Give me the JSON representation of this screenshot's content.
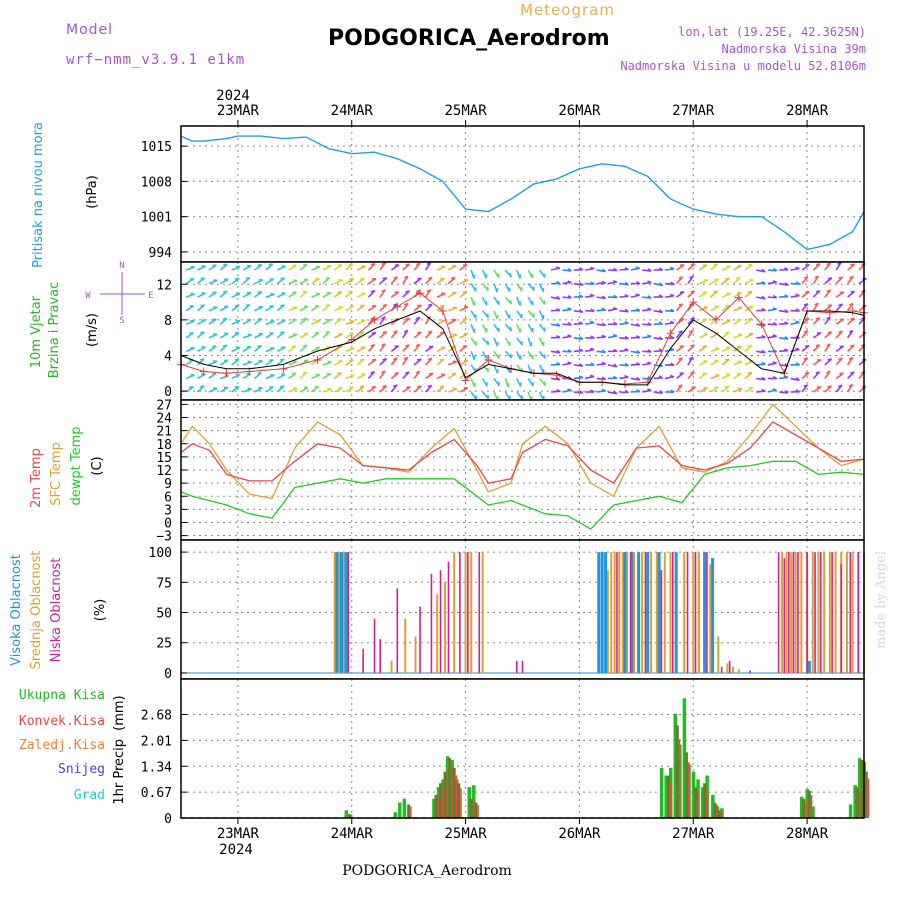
{
  "header": {
    "model_label": "Model",
    "model_name": "wrf−nmm_v3.9.1  e1km",
    "product": "Meteogram",
    "station": "PODGORICA_Aerodrom",
    "lonlat": "lon,lat (19.25E, 42.3625N)",
    "elevation": "Nadmorska Visina 39m",
    "model_elevation": "Nadmorska Visina u modelu 52.8106m",
    "footer_station": "PODGORICA_Aerodrom",
    "credit": "made by Angel"
  },
  "time_axis": {
    "year": "2024",
    "ticks": [
      "23MAR",
      "24MAR",
      "25MAR",
      "26MAR",
      "27MAR",
      "28MAR"
    ],
    "x_range_days": [
      22.5,
      28.5
    ]
  },
  "colors": {
    "pressure": "#1ea0e8",
    "wind_speed": "#000000",
    "wind_gust": "#e83c3c",
    "temp_2m": "#e84848",
    "temp_sfc": "#e0a030",
    "dewpoint": "#22cc22",
    "cloud_high": "#1e96e0",
    "cloud_mid": "#e0a030",
    "cloud_low": "#cc2299",
    "precip_total": "#22bb22",
    "precip_conv": "#e84848",
    "precip_frozen": "#f08030",
    "snow": "#4444dd",
    "graupel": "#22cccc",
    "model_text": "#aa55cc",
    "product_text": "#e8b050"
  },
  "chart_data": [
    {
      "type": "line",
      "name": "pressure",
      "ylabel": "Pritisak na nivou mora",
      "unit": "(hPa)",
      "ylim": [
        992,
        1019
      ],
      "yticks": [
        994,
        1001,
        1008,
        1015
      ],
      "series": [
        {
          "x": [
            22.5,
            22.6,
            22.7,
            22.9,
            23.0,
            23.2,
            23.4,
            23.6,
            23.8,
            24.0,
            24.2,
            24.4,
            24.6,
            24.8,
            25.0,
            25.2,
            25.4,
            25.6,
            25.8,
            26.0,
            26.2,
            26.4,
            26.6,
            26.8,
            27.0,
            27.2,
            27.4,
            27.6,
            27.8,
            28.0,
            28.2,
            28.4,
            28.5
          ],
          "values": [
            1017,
            1016,
            1016,
            1016.5,
            1017,
            1017,
            1016.5,
            1016.8,
            1014.5,
            1013.5,
            1013.8,
            1012.5,
            1010.5,
            1008,
            1002.5,
            1002,
            1004.5,
            1007.5,
            1008.5,
            1010.5,
            1011.5,
            1011,
            1009,
            1004.5,
            1002.5,
            1001.5,
            1001,
            1001,
            998,
            994.5,
            995.5,
            998,
            1002
          ]
        }
      ]
    },
    {
      "type": "line",
      "name": "wind",
      "ylabel": "10m Vjetar Brzina i Pravac",
      "unit": "(m/s)",
      "compass": [
        "N",
        "S",
        "E",
        "W"
      ],
      "ylim": [
        -1,
        14.5
      ],
      "yticks": [
        0,
        4,
        8,
        12
      ],
      "series": [
        {
          "name": "speed",
          "x": [
            22.5,
            22.7,
            22.9,
            23.1,
            23.4,
            23.7,
            24.0,
            24.2,
            24.4,
            24.6,
            24.8,
            25.0,
            25.2,
            25.4,
            25.6,
            25.8,
            26.0,
            26.2,
            26.4,
            26.6,
            26.8,
            27.0,
            27.2,
            27.4,
            27.6,
            27.8,
            28.0,
            28.2,
            28.4,
            28.5
          ],
          "values": [
            4,
            3,
            2.5,
            2.5,
            3,
            4.5,
            5.5,
            7,
            8,
            9,
            7,
            1.5,
            3,
            2.5,
            2,
            2,
            1,
            1,
            0.7,
            0.7,
            4.8,
            8,
            6.5,
            4.5,
            2.5,
            2,
            9,
            9,
            8.8,
            8.5
          ]
        },
        {
          "name": "gust",
          "x": [
            22.5,
            22.7,
            22.9,
            23.1,
            23.4,
            23.7,
            24.0,
            24.2,
            24.4,
            24.6,
            24.8,
            25.0,
            25.2,
            25.4,
            25.6,
            25.8,
            26.0,
            26.2,
            26.4,
            26.6,
            26.8,
            27.0,
            27.2,
            27.4,
            27.6,
            27.8,
            28.0,
            28.2,
            28.4,
            28.5
          ],
          "values": [
            3,
            2.2,
            2,
            2.2,
            2.5,
            3.5,
            5.8,
            8,
            9.5,
            11,
            9,
            1.2,
            3.5,
            2.5,
            2,
            1.8,
            1,
            1,
            0.8,
            1,
            6.5,
            10,
            8,
            10.5,
            7.5,
            2,
            9,
            8.8,
            9,
            8.8
          ]
        }
      ]
    },
    {
      "type": "line",
      "name": "temperature",
      "ylabel": "2m Temp / SFC Temp / dewpt Temp",
      "unit": "(C)",
      "ylim": [
        -4,
        28
      ],
      "yticks": [
        -3,
        0,
        3,
        6,
        9,
        12,
        15,
        18,
        21,
        24,
        27
      ],
      "series": [
        {
          "name": "2m Temp",
          "x": [
            22.5,
            22.6,
            22.75,
            22.9,
            23.1,
            23.3,
            23.5,
            23.7,
            23.9,
            24.1,
            24.3,
            24.5,
            24.7,
            24.9,
            25.1,
            25.2,
            25.4,
            25.5,
            25.7,
            25.9,
            26.1,
            26.3,
            26.5,
            26.7,
            26.9,
            27.1,
            27.3,
            27.5,
            27.7,
            27.9,
            28.1,
            28.3,
            28.5
          ],
          "values": [
            16,
            18,
            16.5,
            11,
            9.5,
            9.5,
            14,
            18,
            17,
            13,
            12.5,
            12,
            16,
            19,
            13,
            9,
            10,
            16,
            19,
            17.5,
            12,
            9,
            17,
            17.5,
            13,
            12,
            13.5,
            17,
            23,
            20,
            17,
            14,
            14.5
          ]
        },
        {
          "name": "SFC Temp",
          "x": [
            22.5,
            22.6,
            22.75,
            22.9,
            23.1,
            23.3,
            23.5,
            23.7,
            23.9,
            24.1,
            24.3,
            24.5,
            24.7,
            24.9,
            25.1,
            25.2,
            25.4,
            25.5,
            25.7,
            25.9,
            26.1,
            26.3,
            26.5,
            26.7,
            26.9,
            27.1,
            27.3,
            27.5,
            27.7,
            27.9,
            28.1,
            28.3,
            28.5
          ],
          "values": [
            18,
            22,
            18,
            12,
            6.5,
            5.5,
            17,
            23,
            20,
            13,
            12.5,
            11.5,
            17,
            21.5,
            12,
            7,
            9,
            18,
            22,
            18,
            9,
            6,
            17,
            22,
            12.5,
            11.5,
            14,
            20,
            27,
            22,
            17,
            13,
            14.5
          ]
        },
        {
          "name": "dewpt Temp",
          "x": [
            22.5,
            22.6,
            22.75,
            22.9,
            23.1,
            23.3,
            23.5,
            23.7,
            23.9,
            24.1,
            24.3,
            24.5,
            24.7,
            24.9,
            25.1,
            25.2,
            25.4,
            25.5,
            25.7,
            25.9,
            26.1,
            26.3,
            26.5,
            26.7,
            26.9,
            27.1,
            27.3,
            27.5,
            27.7,
            27.9,
            28.1,
            28.3,
            28.5
          ],
          "values": [
            7,
            6,
            5,
            4,
            2,
            1,
            8,
            9,
            10,
            9,
            10,
            10,
            10,
            10,
            6,
            4,
            5,
            4,
            2,
            1.5,
            -1.5,
            4,
            5,
            6,
            4.5,
            11,
            12.5,
            13,
            14,
            14,
            11,
            11.5,
            11
          ]
        }
      ]
    },
    {
      "type": "bar",
      "name": "cloud cover",
      "ylabel": "Visoka Oblacnost / Srednja Oblacnost / Niska Oblacnost",
      "unit": "(%)",
      "ylim": [
        -5,
        110
      ],
      "yticks": [
        0,
        25,
        50,
        75,
        100
      ],
      "series": [
        {
          "name": "Visoka Oblacnost",
          "x": [
            23.87,
            23.91,
            23.95,
            26.17,
            26.2,
            26.23,
            26.4,
            26.46,
            26.52,
            26.6,
            26.7,
            26.85,
            27.1,
            27.17,
            28.02
          ],
          "values": [
            100,
            100,
            100,
            100,
            100,
            100,
            100,
            100,
            100,
            100,
            100,
            100,
            100,
            95,
            10
          ]
        },
        {
          "name": "Srednja Oblacnost",
          "x": [
            23.85,
            23.89,
            23.93,
            24.35,
            24.47,
            24.56,
            24.75,
            24.82,
            24.9,
            25.0,
            25.05,
            25.15,
            26.25,
            26.28,
            26.31,
            26.35,
            26.38,
            26.42,
            26.48,
            26.55,
            26.63,
            26.68,
            26.75,
            26.8,
            26.92,
            27.0,
            27.05,
            27.15,
            27.22,
            27.3,
            27.35,
            27.4,
            27.78,
            27.82,
            27.86,
            27.9,
            27.95,
            28.0,
            28.05,
            28.1,
            28.15,
            28.2,
            28.25,
            28.3,
            28.35,
            28.4,
            28.45,
            28.5
          ],
          "values": [
            100,
            100,
            100,
            10,
            45,
            30,
            65,
            75,
            100,
            100,
            100,
            100,
            85,
            100,
            100,
            100,
            100,
            100,
            100,
            100,
            100,
            100,
            100,
            100,
            100,
            100,
            100,
            90,
            30,
            8,
            5,
            3,
            100,
            100,
            100,
            100,
            100,
            100,
            100,
            100,
            100,
            100,
            100,
            100,
            100,
            100,
            100,
            100
          ]
        },
        {
          "name": "Niska Oblacnost",
          "x": [
            23.97,
            24.1,
            24.2,
            24.25,
            24.4,
            24.6,
            24.7,
            24.78,
            24.85,
            24.95,
            25.02,
            25.12,
            25.45,
            25.5,
            26.33,
            26.45,
            26.58,
            26.72,
            26.82,
            26.95,
            27.02,
            27.12,
            27.25,
            27.32,
            27.5,
            27.75,
            27.8,
            27.84,
            27.88,
            27.92,
            28.0,
            28.07,
            28.12,
            28.22,
            28.3,
            28.38,
            28.45
          ],
          "values": [
            100,
            20,
            45,
            28,
            70,
            55,
            82,
            85,
            92,
            100,
            100,
            100,
            10,
            10,
            100,
            100,
            100,
            85,
            100,
            100,
            100,
            100,
            5,
            10,
            2,
            100,
            95,
            100,
            100,
            100,
            100,
            100,
            100,
            100,
            90,
            100,
            100
          ]
        }
      ]
    },
    {
      "type": "bar",
      "name": "precipitation",
      "ylabel": "1hr Precip",
      "unit": "(mm)",
      "ylim": [
        0,
        3.6
      ],
      "yticks": [
        0,
        0.67,
        1.34,
        2.01,
        2.68
      ],
      "legend": [
        "Ukupna Kisa",
        "Konvek.Kisa",
        "Zaledj.Kisa",
        "Snijeg",
        "Grad"
      ],
      "series": [
        {
          "name": "Ukupna Kisa",
          "x": [
            23.95,
            24.38,
            24.42,
            24.46,
            24.72,
            24.76,
            24.8,
            24.84,
            24.88,
            24.92,
            25.03,
            25.07,
            26.72,
            26.76,
            26.8,
            26.84,
            26.88,
            26.92,
            26.96,
            27.0,
            27.04,
            27.08,
            27.12,
            27.17,
            27.21,
            27.25,
            27.95,
            28.0,
            28.05,
            28.38,
            28.42,
            28.46,
            28.5
          ],
          "values": [
            0.2,
            0.15,
            0.4,
            0.5,
            0.5,
            0.8,
            1.0,
            1.6,
            1.5,
            1.0,
            0.8,
            0.85,
            1.3,
            1.1,
            1.3,
            2.7,
            1.9,
            3.1,
            1.4,
            1.2,
            1.0,
            0.8,
            1.1,
            0.6,
            0.3,
            0.25,
            0.55,
            0.75,
            0.3,
            0.35,
            0.85,
            1.55,
            1.45
          ]
        },
        {
          "name": "Konvek.Kisa",
          "x": [
            23.98,
            24.5,
            24.74,
            24.78,
            24.82,
            24.86,
            24.9,
            24.94,
            25.05,
            25.09,
            26.78,
            26.86,
            26.94,
            27.02,
            27.1,
            27.19,
            27.23,
            27.97,
            28.02,
            28.44,
            28.48,
            28.52
          ],
          "values": [
            0.1,
            0.35,
            0.6,
            0.9,
            1.2,
            1.55,
            1.3,
            0.9,
            0.5,
            0.4,
            1.1,
            2.4,
            1.7,
            0.8,
            0.9,
            0.4,
            0.2,
            0.5,
            0.7,
            0.8,
            1.5,
            1.2
          ]
        }
      ]
    }
  ]
}
